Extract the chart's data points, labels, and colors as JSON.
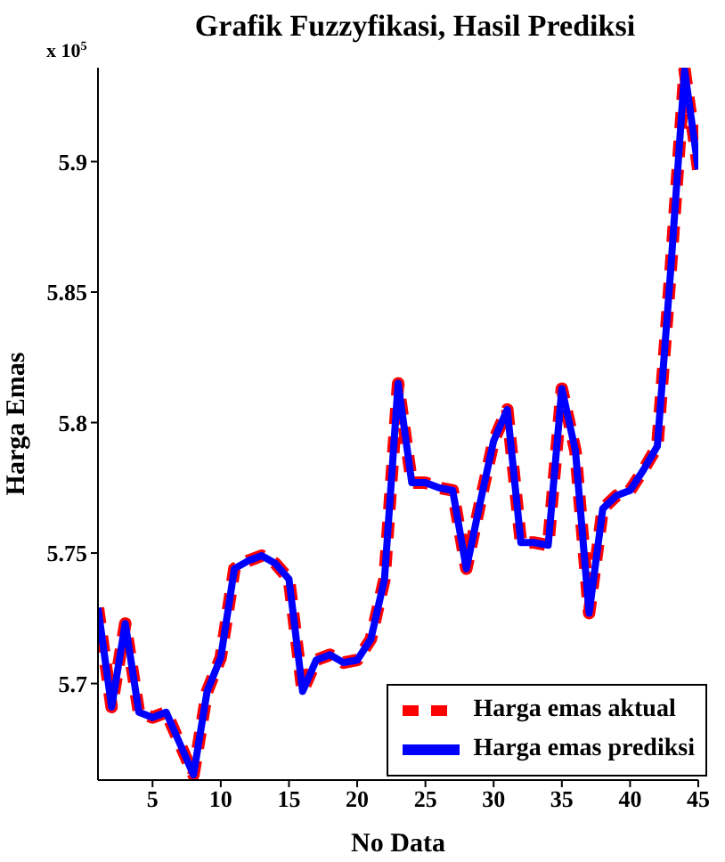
{
  "chart_data": {
    "type": "line",
    "title": "Grafik Fuzzyfikasi, Hasil Prediksi",
    "xlabel": "No Data",
    "ylabel": "Harga Emas",
    "annotations": [
      "x 10$^{5}$"
    ],
    "x": [
      1,
      2,
      3,
      4,
      5,
      6,
      7,
      8,
      9,
      10,
      11,
      12,
      13,
      14,
      15,
      16,
      17,
      18,
      19,
      20,
      21,
      22,
      23,
      24,
      25,
      26,
      27,
      28,
      29,
      30,
      31,
      32,
      33,
      34,
      35,
      36,
      37,
      38,
      39,
      40,
      41,
      42,
      43,
      44,
      45
    ],
    "series": [
      {
        "name": "Harga emas aktual",
        "color": "#ff0000",
        "line_style": "dashed",
        "values": [
          5.729,
          5.691,
          5.723,
          5.689,
          5.687,
          5.689,
          5.677,
          5.665,
          5.697,
          5.71,
          5.744,
          5.747,
          5.749,
          5.746,
          5.74,
          5.697,
          5.709,
          5.711,
          5.708,
          5.709,
          5.717,
          5.74,
          5.815,
          5.777,
          5.777,
          5.775,
          5.774,
          5.744,
          5.769,
          5.793,
          5.805,
          5.754,
          5.754,
          5.753,
          5.813,
          5.789,
          5.727,
          5.767,
          5.772,
          5.774,
          5.782,
          5.791,
          5.86,
          5.935,
          5.897
        ]
      },
      {
        "name": "Harga emas prediksi",
        "color": "#0000ff",
        "line_style": "solid",
        "values": [
          5.729,
          5.691,
          5.723,
          5.689,
          5.687,
          5.689,
          5.677,
          5.665,
          5.697,
          5.71,
          5.744,
          5.747,
          5.749,
          5.746,
          5.74,
          5.697,
          5.709,
          5.711,
          5.708,
          5.709,
          5.717,
          5.74,
          5.815,
          5.777,
          5.777,
          5.775,
          5.774,
          5.744,
          5.769,
          5.793,
          5.805,
          5.754,
          5.754,
          5.753,
          5.813,
          5.789,
          5.727,
          5.767,
          5.772,
          5.774,
          5.782,
          5.791,
          5.86,
          5.935,
          5.897
        ]
      }
    ],
    "xlim": [
      1,
      45
    ],
    "xticks": [
      5,
      10,
      15,
      20,
      25,
      30,
      35,
      40,
      45
    ],
    "ylim": [
      5.663,
      5.936
    ],
    "yticks": [
      5.7,
      5.75,
      5.8,
      5.85,
      5.9
    ],
    "grid": false,
    "legend": "bottom right",
    "marker": "none"
  }
}
